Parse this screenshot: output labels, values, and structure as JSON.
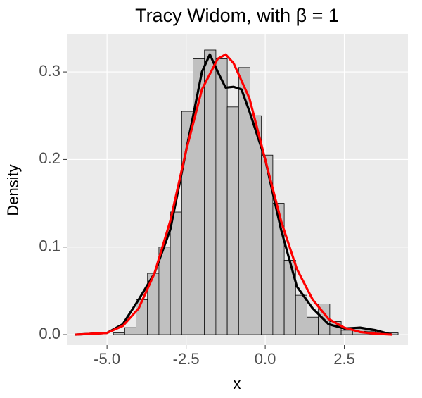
{
  "chart_data": {
    "type": "histogram",
    "title": "Tracy Widom, with β = 1",
    "x_label": "x",
    "y_label": "Density",
    "bins": [
      -4.8,
      -4.44,
      -4.08,
      -3.72,
      -3.36,
      -3.0,
      -2.64,
      -2.28,
      -1.92,
      -1.56,
      -1.2,
      -0.84,
      -0.48,
      -0.12,
      0.24,
      0.6,
      0.96,
      1.32,
      1.68,
      2.04,
      2.4,
      2.76,
      3.12,
      3.48,
      3.84,
      4.2
    ],
    "values": [
      0.002,
      0.008,
      0.04,
      0.07,
      0.1,
      0.14,
      0.255,
      0.315,
      0.325,
      0.315,
      0.26,
      0.305,
      0.25,
      0.205,
      0.15,
      0.085,
      0.045,
      0.02,
      0.035,
      0.015,
      0.005,
      0.008,
      0.004,
      0.002,
      0.002
    ],
    "color": "#c0c0c0",
    "lines": [
      {
        "color": "#000000",
        "x": [
          -6,
          -5,
          -4.5,
          -4,
          -3.5,
          -3,
          -2.5,
          -2,
          -1.75,
          -1.5,
          -1.25,
          -1,
          -0.75,
          -0.5,
          0,
          0.5,
          1,
          1.5,
          2,
          2.5,
          3,
          3.5,
          4
        ],
        "values": [
          0,
          0.002,
          0.012,
          0.04,
          0.07,
          0.12,
          0.21,
          0.3,
          0.32,
          0.3,
          0.282,
          0.283,
          0.28,
          0.255,
          0.2,
          0.12,
          0.055,
          0.03,
          0.012,
          0.007,
          0.008,
          0.005,
          0
        ]
      },
      {
        "color": "#ff0000",
        "x": [
          -6,
          -5,
          -4.5,
          -4,
          -3.5,
          -3,
          -2.5,
          -2,
          -1.5,
          -1.25,
          -1,
          -0.5,
          0,
          0.5,
          1,
          1.5,
          2,
          2.5,
          3,
          3.5,
          4
        ],
        "values": [
          0,
          0.002,
          0.01,
          0.03,
          0.07,
          0.13,
          0.21,
          0.28,
          0.315,
          0.32,
          0.31,
          0.27,
          0.2,
          0.13,
          0.075,
          0.04,
          0.018,
          0.008,
          0.003,
          0.001,
          0
        ]
      }
    ],
    "xlim": [
      -6.27,
      4.51
    ],
    "ylim": [
      -0.012,
      0.3435
    ],
    "xticks": [
      {
        "value": -5,
        "label": "-5.0"
      },
      {
        "value": -2.5,
        "label": "-2.5"
      },
      {
        "value": 0,
        "label": "0.0"
      },
      {
        "value": 2.5,
        "label": "2.5"
      }
    ],
    "yticks": [
      {
        "value": 0,
        "label": "0.0"
      },
      0.1,
      0.2,
      0.3
    ],
    "grid": true
  }
}
